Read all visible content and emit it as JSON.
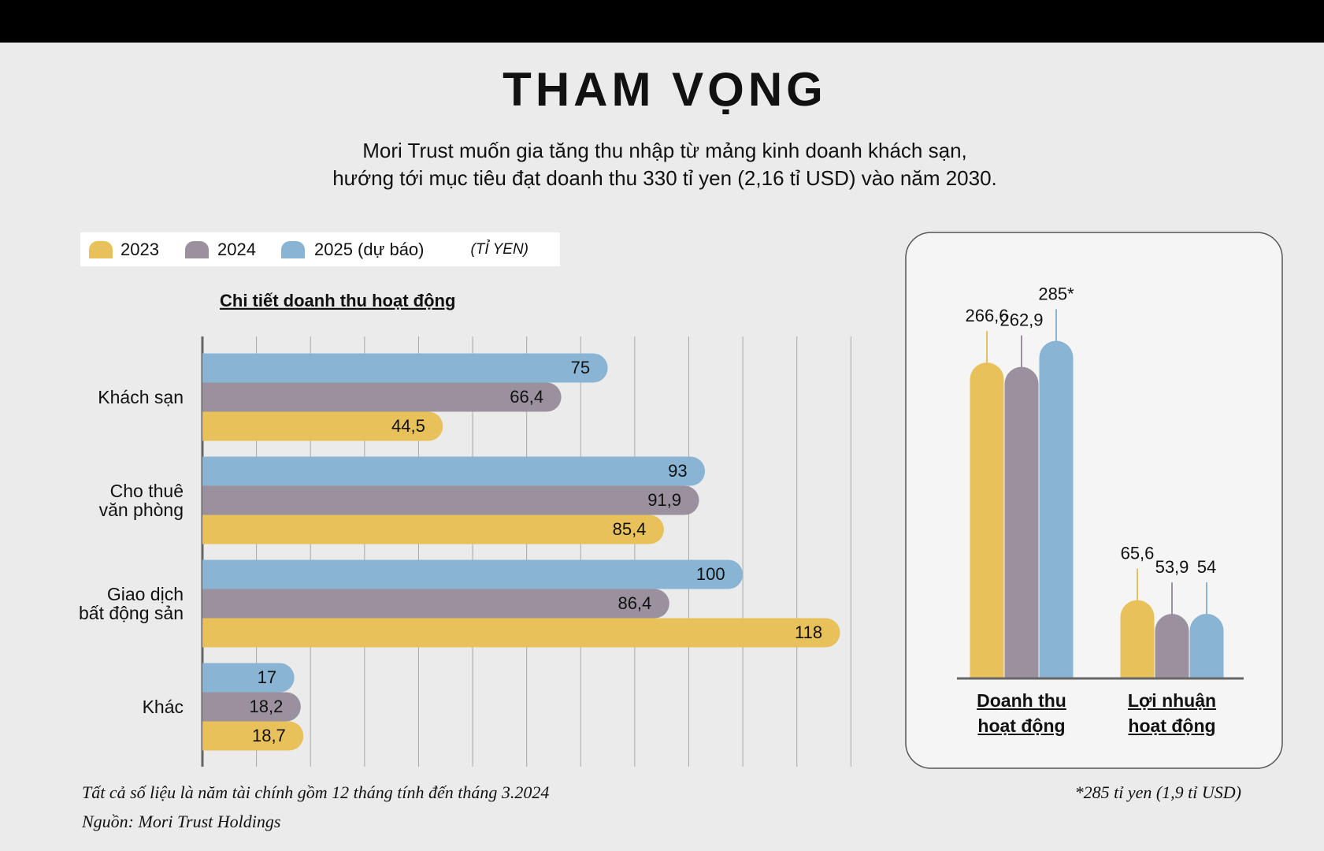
{
  "title": "THAM VỌNG",
  "subtitle": [
    "Mori Trust muốn gia tăng thu nhập từ mảng kinh doanh khách sạn,",
    "hướng tới mục tiêu đạt doanh thu 330 tỉ yen (2,16 tỉ USD) vào năm 2030."
  ],
  "unit": "(TỈ YEN)",
  "notes": [
    "Tất cả số liệu là năm tài chính gồm 12 tháng tính đến tháng 3.2024",
    "Nguồn: Mori Trust Holdings"
  ],
  "footnote": "*285 tỉ yen (1,9 tỉ USD)",
  "chart_data": [
    {
      "type": "hbar",
      "title": "Chi tiết doanh thu hoạt động",
      "categories": [
        "Khách sạn",
        "Cho thuê\nvăn phòng",
        "Giao dịch\nbất động sản",
        "Khác"
      ],
      "series": [
        {
          "name": "2023",
          "color": "#e8c15a",
          "values": [
            44.5,
            85.4,
            118,
            18.7
          ],
          "value_labels": [
            "44,5",
            "85,4",
            "118",
            "18,7"
          ]
        },
        {
          "name": "2024",
          "color": "#9b919e",
          "values": [
            66.4,
            91.9,
            86.4,
            18.2
          ],
          "value_labels": [
            "66,4",
            "91,9",
            "86,4",
            "18,2"
          ]
        },
        {
          "name": "2025 (dự báo)",
          "color": "#8ab4d4",
          "values": [
            75,
            93,
            100,
            17
          ],
          "value_labels": [
            "75",
            "93",
            "100",
            "17"
          ]
        }
      ],
      "xlim": [
        0,
        120
      ],
      "xticks": [
        0,
        10,
        20,
        30,
        40,
        50,
        60,
        70,
        80,
        90,
        100,
        110,
        120
      ],
      "grid": true
    },
    {
      "type": "bar",
      "categories": [
        "Doanh thu\nhoạt động",
        "Lợi nhuận\nhoạt động"
      ],
      "series": [
        {
          "name": "2023",
          "color": "#e8c15a",
          "values": [
            266.6,
            65.6
          ],
          "value_labels": [
            "266,6",
            "65,6"
          ]
        },
        {
          "name": "2024",
          "color": "#9b919e",
          "values": [
            262.9,
            53.9
          ],
          "value_labels": [
            "262,9",
            "53,9"
          ]
        },
        {
          "name": "2025 (dự báo)",
          "color": "#8ab4d4",
          "values": [
            285,
            54
          ],
          "value_labels": [
            "285*",
            "54"
          ]
        }
      ],
      "ylim": [
        0,
        300
      ]
    }
  ]
}
